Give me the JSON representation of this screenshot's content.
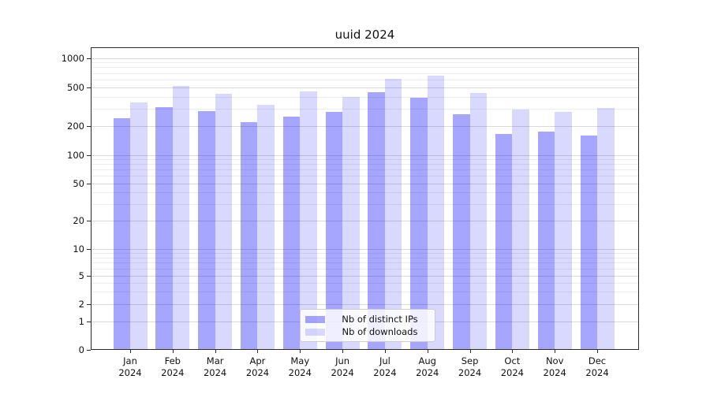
{
  "chart_data": {
    "type": "bar",
    "title": "uuid 2024",
    "categories": [
      "Jan",
      "Feb",
      "Mar",
      "Apr",
      "May",
      "Jun",
      "Jul",
      "Aug",
      "Sep",
      "Oct",
      "Nov",
      "Dec"
    ],
    "year": "2024",
    "series": [
      {
        "name": "Nb of distinct IPs",
        "color": "rgba(0,0,255,0.35)",
        "color_hex_on_white": "#a6a6ff",
        "values": [
          240,
          310,
          285,
          220,
          250,
          280,
          440,
          390,
          265,
          165,
          175,
          160
        ]
      },
      {
        "name": "Nb of downloads",
        "color": "rgba(0,0,255,0.15)",
        "color_hex_on_white": "#d9d9ff",
        "values": [
          350,
          515,
          425,
          330,
          455,
          395,
          610,
          650,
          435,
          295,
          280,
          305
        ]
      }
    ],
    "y_ticks": [
      0,
      1,
      2,
      5,
      10,
      20,
      50,
      100,
      200,
      500,
      1000
    ],
    "y_minor_ticks": [
      3,
      4,
      6,
      7,
      8,
      9,
      30,
      40,
      60,
      70,
      80,
      90,
      300,
      400,
      600,
      700,
      800,
      900
    ],
    "y_scale": "symlog",
    "ylim": [
      0,
      1300
    ],
    "xlabel": "",
    "ylabel": "",
    "grid": "horizontal",
    "legend_position": "lower center"
  }
}
